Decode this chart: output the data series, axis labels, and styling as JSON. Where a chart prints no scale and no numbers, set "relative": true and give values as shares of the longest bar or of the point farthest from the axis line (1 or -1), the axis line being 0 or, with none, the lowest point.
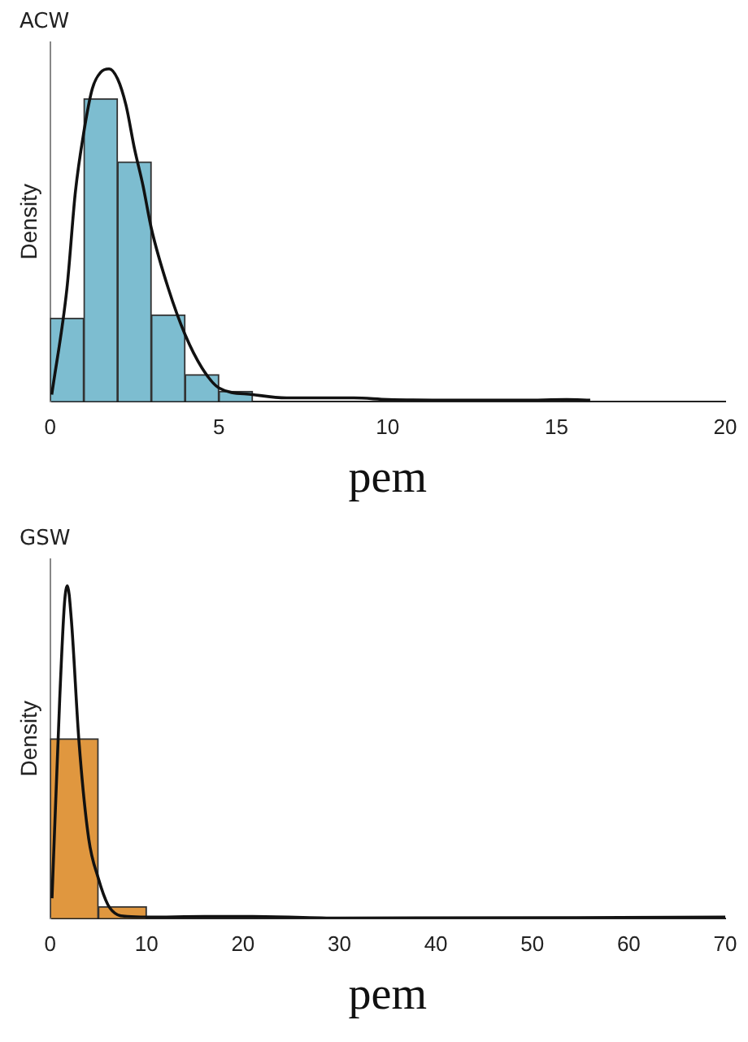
{
  "chart_data": [
    {
      "type": "histogram",
      "title": "ACW",
      "xlabel": "pem",
      "ylabel": "Density",
      "relative": true,
      "xlim": [
        0,
        20
      ],
      "xticks": [
        0,
        5,
        10,
        15,
        20
      ],
      "grid": false,
      "legend": false,
      "bins": [
        0,
        1,
        2,
        3,
        4,
        5,
        6
      ],
      "values": [
        0.25,
        0.91,
        0.72,
        0.26,
        0.08,
        0.03
      ],
      "color": "#7dbdd0",
      "series": [
        {
          "type": "line",
          "color": "#111111",
          "x": [
            0.05,
            0.5,
            0.75,
            1,
            1.25,
            1.5,
            1.75,
            2,
            2.25,
            2.5,
            2.75,
            3,
            3.5,
            4,
            4.5,
            5,
            6,
            7,
            8,
            9,
            10,
            12,
            14,
            15.3,
            16
          ],
          "values": [
            0.02,
            0.34,
            0.63,
            0.81,
            0.94,
            0.99,
            1,
            0.97,
            0.89,
            0.76,
            0.65,
            0.52,
            0.34,
            0.2,
            0.1,
            0.04,
            0.02,
            0.01,
            0.01,
            0.01,
            0.005,
            0.003,
            0.003,
            0.005,
            0.003
          ]
        }
      ]
    },
    {
      "type": "histogram",
      "title": "GSW",
      "xlabel": "pem",
      "ylabel": "Density",
      "relative": true,
      "xlim": [
        0,
        70
      ],
      "xticks": [
        0,
        10,
        20,
        30,
        40,
        50,
        60,
        70
      ],
      "grid": false,
      "legend": false,
      "bins": [
        0,
        5,
        10
      ],
      "values": [
        0.54,
        0.035
      ],
      "color": "#e0973f",
      "series": [
        {
          "type": "line",
          "color": "#111111",
          "x": [
            0.2,
            1,
            1.5,
            1.8,
            2.2,
            3,
            4,
            5,
            6,
            7,
            8,
            10,
            16,
            21,
            30,
            70
          ],
          "values": [
            0.06,
            0.66,
            0.95,
            1,
            0.9,
            0.53,
            0.24,
            0.12,
            0.04,
            0.01,
            0.005,
            0.003,
            0.005,
            0.005,
            0,
            0.003
          ]
        }
      ]
    }
  ]
}
